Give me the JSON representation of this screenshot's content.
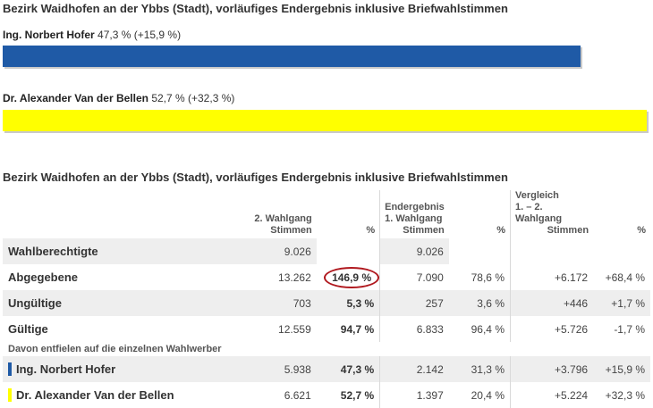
{
  "top": {
    "title": "Bezirk Waidhofen an der Ybbs (Stadt), vorläufiges Endergebnis inklusive Briefwahlstimmen",
    "candidates": [
      {
        "name": "Ing. Norbert Hofer",
        "stats": "47,3 % (+15,9 %)",
        "share": 47.3,
        "color": "#1f5aa6"
      },
      {
        "name": "Dr. Alexander Van der Bellen",
        "stats": "52,7 % (+32,3 %)",
        "share": 52.7,
        "color": "#ffff00"
      }
    ]
  },
  "table": {
    "title": "Bezirk Waidhofen an der Ybbs (Stadt), vorläufiges Endergebnis inklusive Briefwahlstimmen",
    "headers": {
      "g2_l1": "2. Wahlgang",
      "g2_l2": "Stimmen",
      "g2_pct": "%",
      "end_l1": "Endergebnis",
      "end_l2": "1. Wahlgang",
      "end_l3": "Stimmen",
      "end_pct": "%",
      "cmp_l1": "Vergleich",
      "cmp_l2": "1. – 2. Wahlgang",
      "cmp_l3": "Stimmen",
      "cmp_pct": "%"
    },
    "rows": [
      {
        "label": "Wahlberechtigte",
        "g2_votes": "9.026",
        "g2_pct": "",
        "g1_votes": "9.026",
        "g1_pct": "",
        "diff_votes": "",
        "diff_pct": ""
      },
      {
        "label": "Abgegebene",
        "g2_votes": "13.262",
        "g2_pct": "146,9 %",
        "g1_votes": "7.090",
        "g1_pct": "78,6 %",
        "diff_votes": "+6.172",
        "diff_pct": "+68,4 %"
      },
      {
        "label": "Ungültige",
        "g2_votes": "703",
        "g2_pct": "5,3 %",
        "g1_votes": "257",
        "g1_pct": "3,6 %",
        "diff_votes": "+446",
        "diff_pct": "+1,7 %"
      },
      {
        "label": "Gültige",
        "g2_votes": "12.559",
        "g2_pct": "94,7 %",
        "g1_votes": "6.833",
        "g1_pct": "96,4 %",
        "diff_votes": "+5.726",
        "diff_pct": "-1,7 %"
      }
    ],
    "subheading": "Davon entfielen auf die einzelnen Wahlwerber",
    "candidate_rows": [
      {
        "label": "Ing. Norbert Hofer",
        "color": "#1f5aa6",
        "g2_votes": "5.938",
        "g2_pct": "47,3 %",
        "g1_votes": "2.142",
        "g1_pct": "31,3 %",
        "diff_votes": "+3.796",
        "diff_pct": "+15,9 %"
      },
      {
        "label": "Dr. Alexander Van der Bellen",
        "color": "#ffff00",
        "g2_votes": "6.621",
        "g2_pct": "52,7 %",
        "g1_votes": "1.397",
        "g1_pct": "20,4 %",
        "diff_votes": "+5.224",
        "diff_pct": "+32,3 %"
      }
    ]
  }
}
